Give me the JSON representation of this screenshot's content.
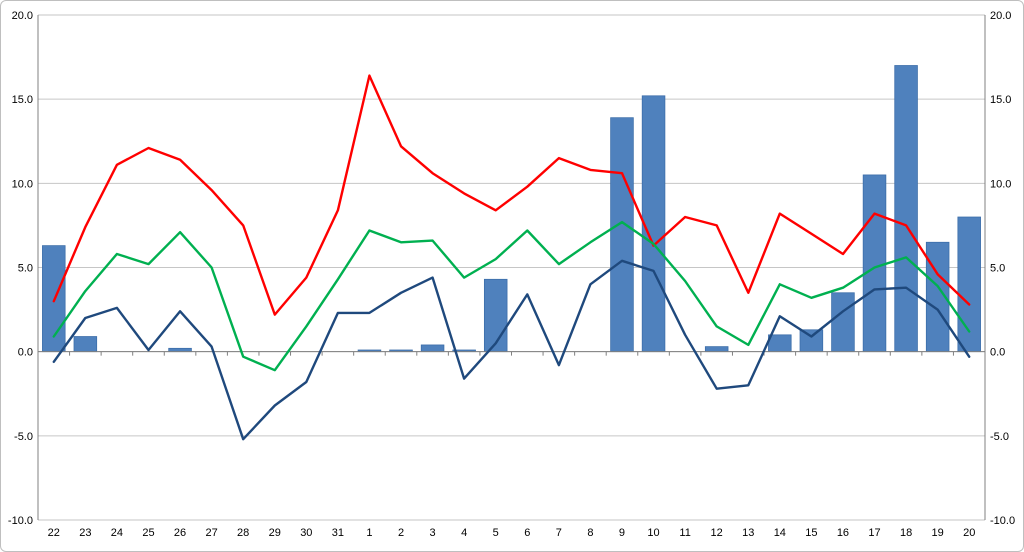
{
  "chart_data": {
    "type": "combo",
    "title": "",
    "xlabel": "",
    "ylabel": "",
    "categories": [
      "22",
      "23",
      "24",
      "25",
      "26",
      "27",
      "28",
      "29",
      "30",
      "31",
      "1",
      "2",
      "3",
      "4",
      "5",
      "6",
      "7",
      "8",
      "9",
      "10",
      "11",
      "12",
      "13",
      "14",
      "15",
      "16",
      "17",
      "18",
      "19",
      "20"
    ],
    "bars": {
      "name": "blue-bars",
      "color": "#4f81bd",
      "border_color": "#3a6ca8",
      "values": [
        6.3,
        0.9,
        0,
        0,
        0.2,
        0,
        0,
        0,
        0,
        0,
        0.1,
        0.1,
        0.4,
        0.1,
        4.3,
        0,
        0,
        0,
        13.9,
        15.2,
        0,
        0.3,
        0,
        1.0,
        1.3,
        3.5,
        10.5,
        17.0,
        6.5,
        8.0
      ]
    },
    "series": [
      {
        "name": "red-line",
        "color": "#ff0000",
        "values": [
          3.0,
          7.4,
          11.1,
          12.1,
          11.4,
          9.6,
          7.5,
          2.2,
          4.4,
          8.4,
          16.4,
          12.2,
          10.6,
          9.4,
          8.4,
          9.8,
          11.5,
          10.8,
          10.6,
          6.3,
          8.0,
          7.5,
          3.5,
          8.2,
          7.0,
          5.8,
          8.2,
          7.5,
          4.6,
          2.8
        ]
      },
      {
        "name": "green-line",
        "color": "#00b050",
        "values": [
          0.9,
          3.6,
          5.8,
          5.2,
          7.1,
          5.0,
          -0.3,
          -1.1,
          1.5,
          4.3,
          7.2,
          6.5,
          6.6,
          4.4,
          5.5,
          7.2,
          5.2,
          6.5,
          7.7,
          6.4,
          4.2,
          1.5,
          0.4,
          4.0,
          3.2,
          3.8,
          5.0,
          5.6,
          3.9,
          1.2
        ]
      },
      {
        "name": "navy-line",
        "color": "#1f497d",
        "values": [
          -0.6,
          2.0,
          2.6,
          0.1,
          2.4,
          0.3,
          -5.2,
          -3.2,
          -1.8,
          2.3,
          2.3,
          3.5,
          4.4,
          -1.6,
          0.5,
          3.4,
          -0.8,
          4.0,
          5.4,
          4.8,
          1.0,
          -2.2,
          -2.0,
          2.1,
          0.9,
          2.4,
          3.7,
          3.8,
          2.5,
          -0.3
        ]
      }
    ],
    "ylim": [
      -10,
      20
    ],
    "yticks": [
      -10,
      -5,
      0,
      5,
      10,
      15,
      20
    ],
    "ytick_label_format": "one-decimal",
    "y_axis_left_labels": [
      "20.0",
      "15.0",
      "10.0",
      "5.0",
      "0.0",
      "-5.0",
      "-10.0"
    ],
    "y_axis_right_labels": [
      "20.0",
      "15.0",
      "10.0",
      "5.0",
      "0.0",
      "-5.0",
      "-10.0"
    ],
    "grid": true,
    "legend": "none",
    "style": {
      "grid_color": "#c6c6c6",
      "axis_color": "#808080",
      "frame_color": "#bfbfbf",
      "text_color": "#000000",
      "background": "#ffffff"
    }
  }
}
